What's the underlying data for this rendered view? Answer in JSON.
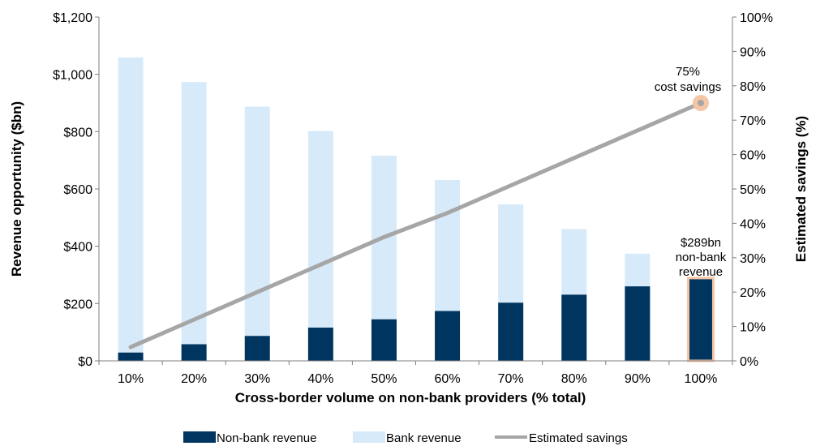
{
  "chart_data": {
    "type": "bar",
    "title": "",
    "xlabel": "Cross-border volume on non-bank providers (% total)",
    "ylabel": "Revenue opportunity ($bn)",
    "y2label": "Estimated savings (%)",
    "categories": [
      "10%",
      "20%",
      "30%",
      "40%",
      "50%",
      "60%",
      "70%",
      "80%",
      "90%",
      "100%"
    ],
    "ylim": [
      0,
      1200
    ],
    "y_ticks": [
      "$0",
      "$200",
      "$400",
      "$600",
      "$800",
      "$1,000",
      "$1,200"
    ],
    "y2lim": [
      0,
      100
    ],
    "y2_ticks": [
      "0%",
      "10%",
      "20%",
      "30%",
      "40%",
      "50%",
      "60%",
      "70%",
      "80%",
      "90%",
      "100%"
    ],
    "stacked": true,
    "series": [
      {
        "name": "Non-bank revenue",
        "type": "bar",
        "color": "#003560",
        "values": [
          29,
          58,
          87,
          116,
          145,
          174,
          203,
          231,
          260,
          289
        ]
      },
      {
        "name": "Bank revenue",
        "type": "bar",
        "color": "#d6eafa",
        "values": [
          1030,
          915,
          800,
          686,
          571,
          457,
          343,
          229,
          114,
          0
        ]
      },
      {
        "name": "Estimated savings",
        "type": "line",
        "axis": "secondary",
        "color": "#a6a6a6",
        "values": [
          4,
          12,
          20,
          28,
          36,
          43,
          51,
          59,
          67,
          75
        ]
      }
    ],
    "annotations": {
      "savings_line1": "75%",
      "savings_line2": "cost savings",
      "nonbank_line1": "$289bn",
      "nonbank_line2": "non-bank",
      "nonbank_line3": "revenue"
    },
    "highlight_color": "#f5c6a5",
    "grid": false,
    "legend_position": "bottom"
  }
}
